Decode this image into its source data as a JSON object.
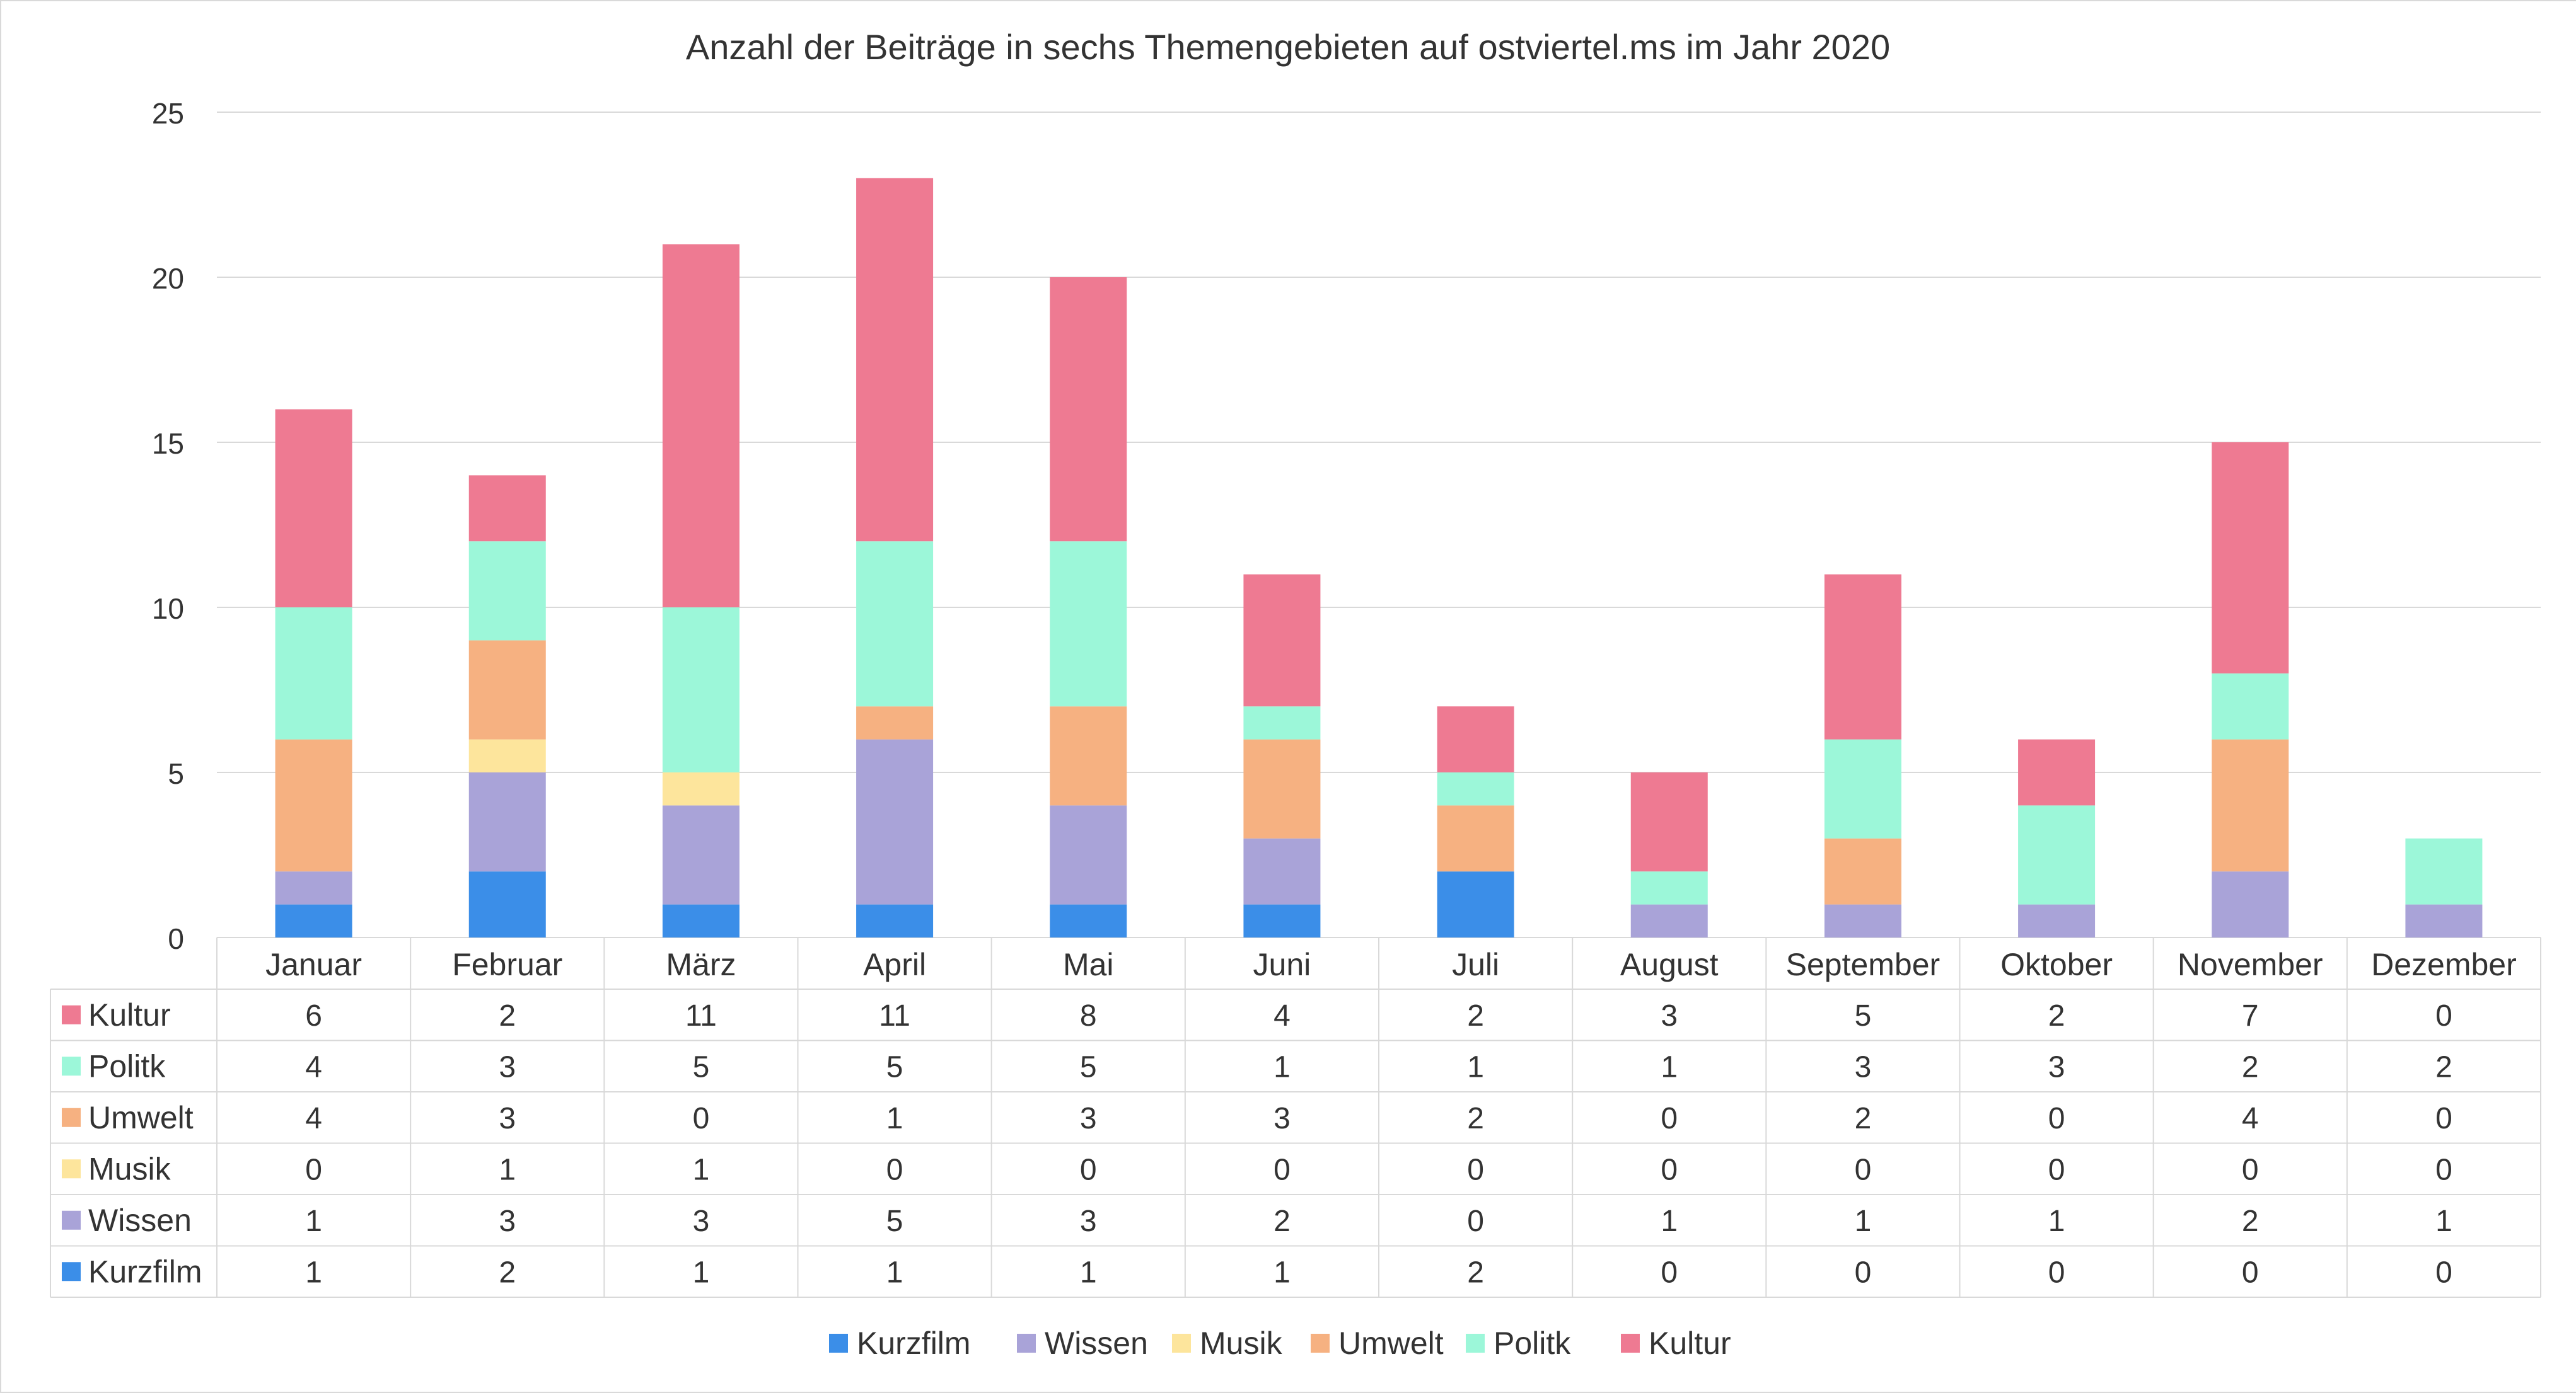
{
  "chart_data": {
    "type": "bar",
    "stacked": true,
    "title": "Anzahl der Beiträge in sechs Themengebieten auf ostviertel.ms im Jahr 2020",
    "xlabel": "",
    "ylabel": "",
    "ylim": [
      0,
      25
    ],
    "yticks": [
      0,
      5,
      10,
      15,
      20,
      25
    ],
    "grid": true,
    "legend_position": "bottom",
    "data_table": true,
    "categories": [
      "Januar",
      "Februar",
      "März",
      "April",
      "Mai",
      "Juni",
      "Juli",
      "August",
      "September",
      "Oktober",
      "November",
      "Dezember"
    ],
    "series": [
      {
        "name": "Kurzfilm",
        "color": "#3b8ee8",
        "values": [
          1,
          2,
          1,
          1,
          1,
          1,
          2,
          0,
          0,
          0,
          0,
          0
        ]
      },
      {
        "name": "Wissen",
        "color": "#a9a3d8",
        "values": [
          1,
          3,
          3,
          5,
          3,
          2,
          0,
          1,
          1,
          1,
          2,
          1
        ]
      },
      {
        "name": "Musik",
        "color": "#fde59c",
        "values": [
          0,
          1,
          1,
          0,
          0,
          0,
          0,
          0,
          0,
          0,
          0,
          0
        ]
      },
      {
        "name": "Umwelt",
        "color": "#f6b181",
        "values": [
          4,
          3,
          0,
          1,
          3,
          3,
          2,
          0,
          2,
          0,
          4,
          0
        ]
      },
      {
        "name": "Politk",
        "color": "#9cf7d9",
        "values": [
          4,
          3,
          5,
          5,
          5,
          1,
          1,
          1,
          3,
          3,
          2,
          2
        ]
      },
      {
        "name": "Kultur",
        "color": "#ee7a92",
        "values": [
          6,
          2,
          11,
          11,
          8,
          4,
          2,
          3,
          5,
          2,
          7,
          0
        ]
      }
    ],
    "table_row_order": [
      "Kultur",
      "Politk",
      "Umwelt",
      "Musik",
      "Wissen",
      "Kurzfilm"
    ],
    "legend_order": [
      "Kurzfilm",
      "Wissen",
      "Musik",
      "Umwelt",
      "Politk",
      "Kultur"
    ]
  }
}
